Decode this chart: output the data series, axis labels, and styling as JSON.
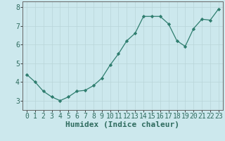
{
  "x": [
    0,
    1,
    2,
    3,
    4,
    5,
    6,
    7,
    8,
    9,
    10,
    11,
    12,
    13,
    14,
    15,
    16,
    17,
    18,
    19,
    20,
    21,
    22,
    23
  ],
  "y": [
    4.4,
    4.0,
    3.5,
    3.2,
    3.0,
    3.2,
    3.5,
    3.55,
    3.8,
    4.2,
    4.9,
    5.5,
    6.2,
    6.6,
    7.5,
    7.5,
    7.5,
    7.1,
    6.2,
    5.9,
    6.85,
    7.35,
    7.3,
    7.9
  ],
  "xlabel": "Humidex (Indice chaleur)",
  "ylim": [
    2.5,
    8.3
  ],
  "xlim": [
    -0.5,
    23.5
  ],
  "yticks": [
    3,
    4,
    5,
    6,
    7,
    8
  ],
  "xticks": [
    0,
    1,
    2,
    3,
    4,
    5,
    6,
    7,
    8,
    9,
    10,
    11,
    12,
    13,
    14,
    15,
    16,
    17,
    18,
    19,
    20,
    21,
    22,
    23
  ],
  "line_color": "#2e7d6e",
  "marker_color": "#2e7d6e",
  "bg_color": "#cce8ed",
  "grid_color": "#b8d4d8",
  "xlabel_fontsize": 8,
  "tick_fontsize": 7,
  "spine_color": "#666666"
}
